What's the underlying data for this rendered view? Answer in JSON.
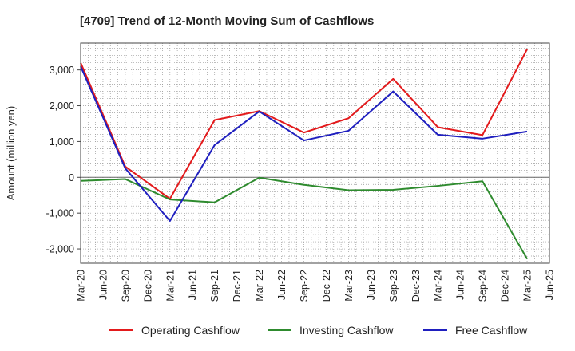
{
  "chart_data": {
    "type": "line",
    "title": "[4709]  Trend of 12-Month Moving Sum of Cashflows",
    "ylabel": "Amount (million yen)",
    "xlabel": "",
    "x_tick_labels": [
      "Mar-20",
      "Jun-20",
      "Sep-20",
      "Dec-20",
      "Mar-21",
      "Jun-21",
      "Sep-21",
      "Dec-21",
      "Mar-22",
      "Jun-22",
      "Sep-22",
      "Dec-22",
      "Mar-23",
      "Jun-23",
      "Sep-23",
      "Dec-23",
      "Mar-24",
      "Jun-24",
      "Sep-24",
      "Dec-24",
      "Mar-25",
      "Jun-25"
    ],
    "y_ticks": [
      -2000,
      -1000,
      0,
      1000,
      2000,
      3000
    ],
    "y_tick_labels": [
      "-2,000",
      "-1,000",
      "0",
      "1,000",
      "2,000",
      "3,000"
    ],
    "ylim": [
      -2400,
      3750
    ],
    "grid": true,
    "legend_position": "bottom",
    "series": [
      {
        "name": "Operating Cashflow",
        "color": "#e31a1c",
        "x": [
          "Mar-20",
          "Sep-20",
          "Mar-21",
          "Sep-21",
          "Mar-22",
          "Sep-22",
          "Mar-23",
          "Sep-23",
          "Mar-24",
          "Sep-24",
          "Mar-25"
        ],
        "values": [
          3200,
          300,
          -600,
          1600,
          1850,
          1250,
          1650,
          2750,
          1400,
          1180,
          3580
        ]
      },
      {
        "name": "Investing Cashflow",
        "color": "#2e8b2e",
        "x": [
          "Mar-20",
          "Sep-20",
          "Mar-21",
          "Sep-21",
          "Mar-22",
          "Sep-22",
          "Mar-23",
          "Sep-23",
          "Mar-24",
          "Sep-24",
          "Mar-25"
        ],
        "values": [
          -100,
          -50,
          -620,
          -700,
          -10,
          -210,
          -360,
          -350,
          -240,
          -110,
          -2280
        ]
      },
      {
        "name": "Free Cashflow",
        "color": "#1f1fbf",
        "x": [
          "Mar-20",
          "Sep-20",
          "Mar-21",
          "Sep-21",
          "Mar-22",
          "Sep-22",
          "Mar-23",
          "Sep-23",
          "Mar-24",
          "Sep-24",
          "Mar-25"
        ],
        "values": [
          3100,
          250,
          -1220,
          900,
          1840,
          1030,
          1300,
          2400,
          1190,
          1080,
          1280
        ]
      }
    ]
  }
}
